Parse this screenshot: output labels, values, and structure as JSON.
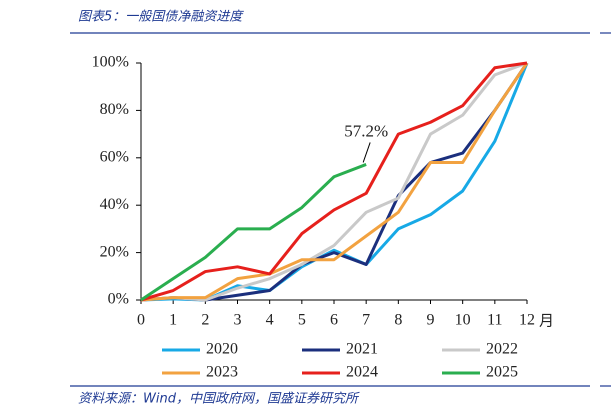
{
  "chart_data": {
    "type": "line",
    "title": "图表5：一般国债净融资进度",
    "source": "资料来源：Wind，中国政府网，国盛证券研究所",
    "x_label": "月",
    "annotation": "57.2%",
    "x": [
      0,
      1,
      2,
      3,
      4,
      5,
      6,
      7,
      8,
      9,
      10,
      11,
      12
    ],
    "xlim": [
      0,
      12
    ],
    "xticks": [
      0,
      1,
      2,
      3,
      4,
      5,
      6,
      7,
      8,
      9,
      10,
      11,
      12
    ],
    "ylim": [
      0,
      100
    ],
    "yticks": [
      {
        "value": 0,
        "label": "0%"
      },
      {
        "value": 20,
        "label": "20%"
      },
      {
        "value": 40,
        "label": "40%"
      },
      {
        "value": 60,
        "label": "60%"
      },
      {
        "value": 80,
        "label": "80%"
      },
      {
        "value": 100,
        "label": "100%"
      }
    ],
    "series": [
      {
        "name": "2020",
        "color": "#17a9e6",
        "values": [
          0,
          0.5,
          0,
          6,
          4,
          14,
          21,
          15,
          30,
          36,
          46,
          67,
          100
        ]
      },
      {
        "name": "2021",
        "color": "#1b2f7d",
        "values": [
          0,
          1,
          0,
          2,
          4,
          15,
          20,
          15,
          44,
          58,
          62,
          80,
          100
        ]
      },
      {
        "name": "2022",
        "color": "#c9c9c9",
        "values": [
          0,
          1,
          0,
          5,
          9,
          15,
          23,
          37,
          43,
          70,
          78,
          95,
          100
        ]
      },
      {
        "name": "2023",
        "color": "#f2a240",
        "values": [
          0,
          1,
          1,
          9,
          11,
          17,
          17,
          27,
          37,
          58,
          58,
          80,
          100
        ]
      },
      {
        "name": "2024",
        "color": "#e6201c",
        "values": [
          0,
          4,
          12,
          14,
          11,
          28,
          38,
          45,
          70,
          75,
          82,
          98,
          100
        ]
      },
      {
        "name": "2025",
        "color": "#2aae4f",
        "values": [
          0,
          9,
          18,
          30,
          30,
          39,
          52,
          57.2,
          null,
          null,
          null,
          null,
          null
        ]
      }
    ]
  }
}
